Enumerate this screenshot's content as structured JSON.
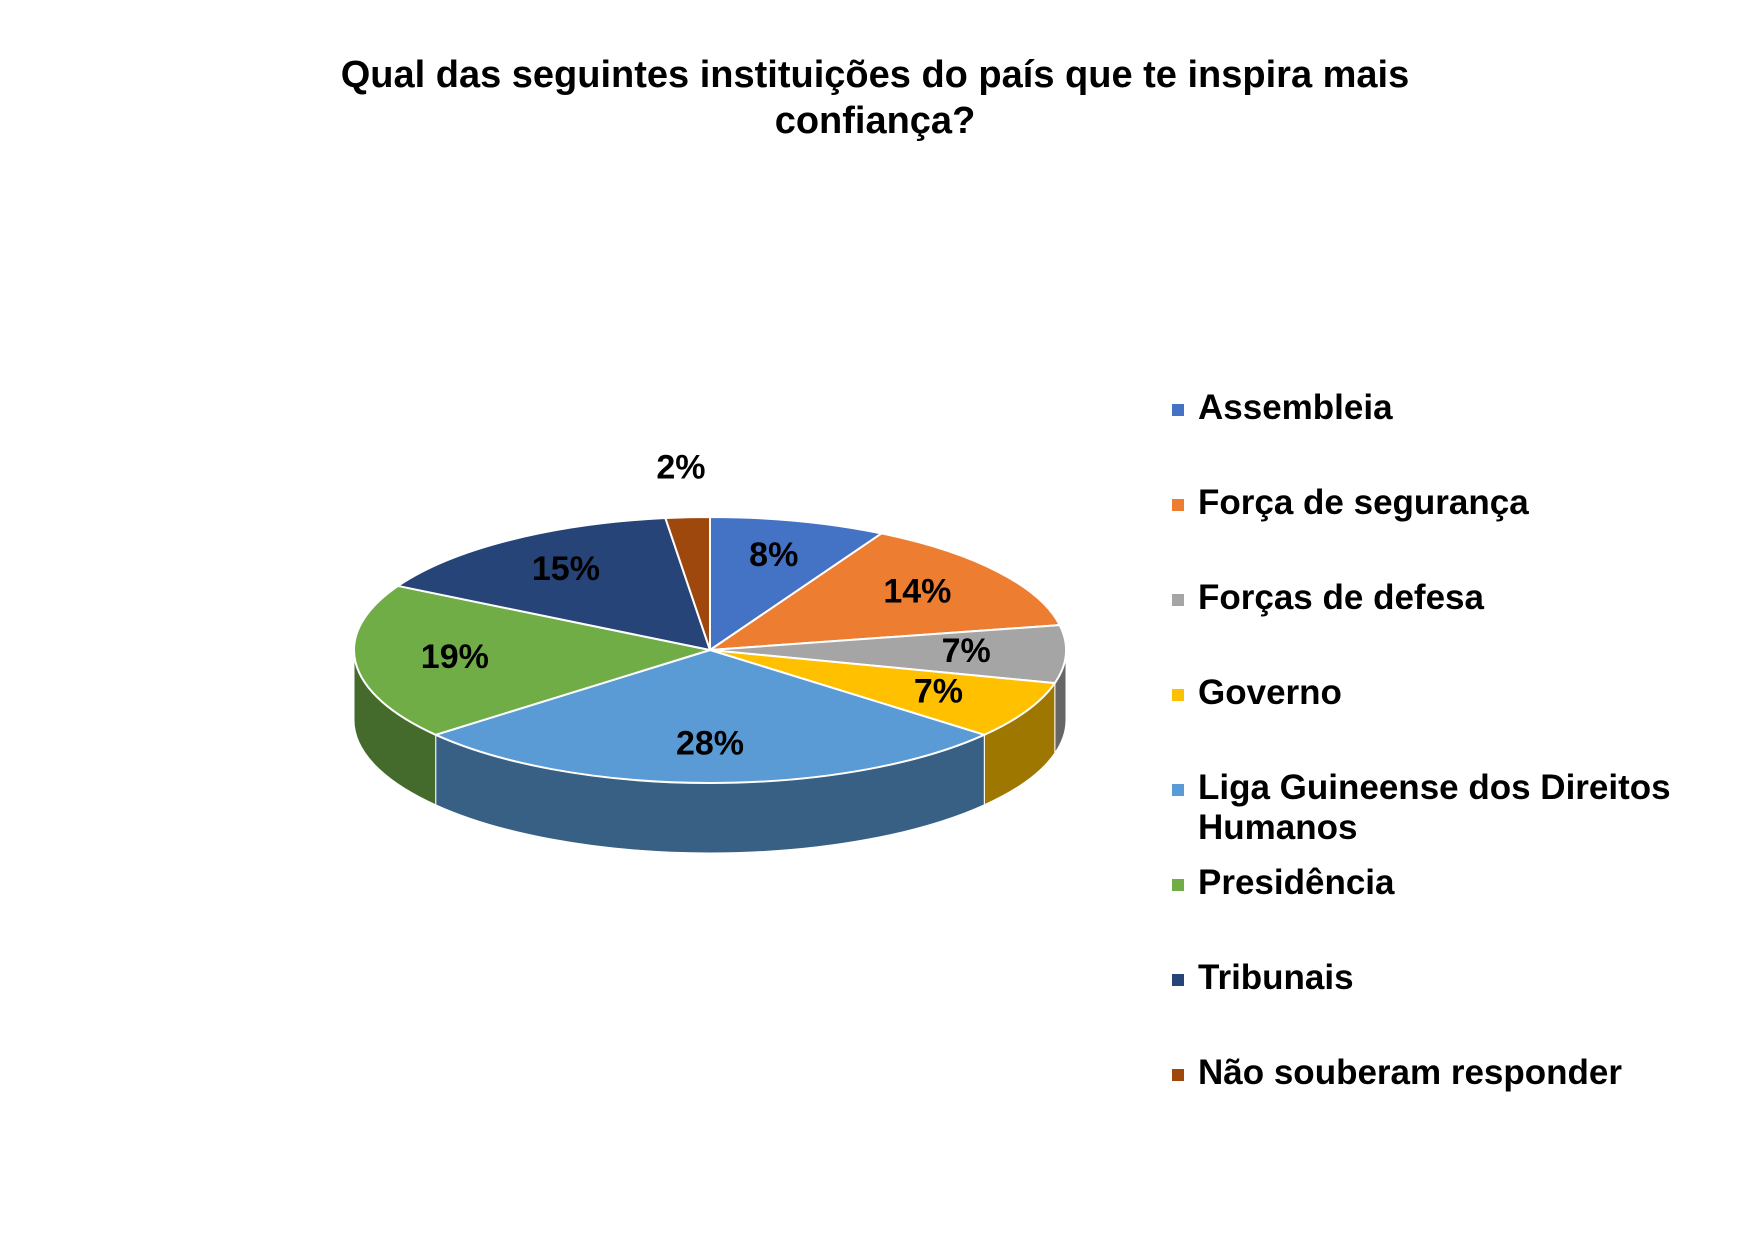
{
  "chart_data": {
    "type": "pie",
    "title": "Qual das seguintes instituições do país que te inspira mais confiança?",
    "categories": [
      "Assembleia",
      "Força de segurança",
      "Forças de defesa",
      "Governo",
      "Liga Guineense dos Direitos Humanos",
      "Presidência",
      "Tribunais",
      "Não souberam responder"
    ],
    "values": [
      8,
      14,
      7,
      7,
      28,
      19,
      15,
      2
    ],
    "value_labels": [
      "8%",
      "14%",
      "7%",
      "7%",
      "28%",
      "19%",
      "15%",
      "2%"
    ],
    "colors": [
      "#4472c4",
      "#ed7d31",
      "#a5a5a5",
      "#ffc000",
      "#5b9bd5",
      "#70ad47",
      "#264478",
      "#9e480e"
    ],
    "legend": "right"
  }
}
